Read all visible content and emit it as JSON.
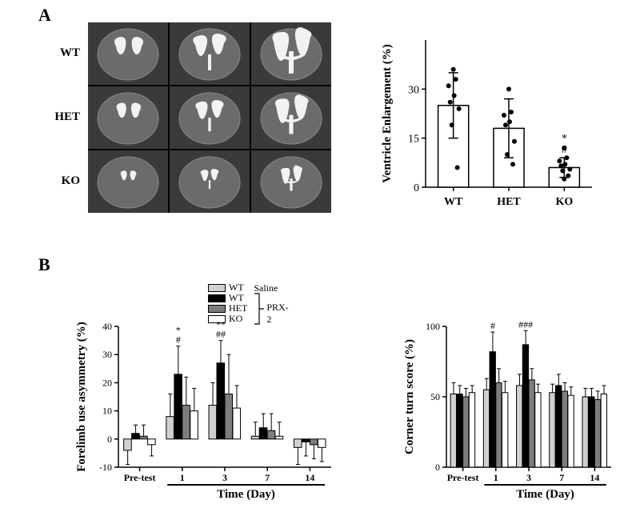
{
  "panelA": {
    "label": "A",
    "row_labels": [
      "WT",
      "HET",
      "KO"
    ],
    "mri": {
      "rows": 3,
      "cols": 3,
      "bg": "#3a3a3a",
      "brain_fill": "#6b6b6b",
      "brain_stroke": "#888",
      "ventricle_fill": "#f2f2f2"
    },
    "bar": {
      "type": "bar-scatter",
      "ylabel": "Ventricle Enlargement  (%)",
      "categories": [
        "WT",
        "HET",
        "KO"
      ],
      "ylim": [
        0,
        45
      ],
      "yticks": [
        0,
        15,
        30
      ],
      "means": [
        25,
        18,
        6
      ],
      "err": [
        10,
        9,
        3
      ],
      "scatter": [
        [
          36,
          33,
          31,
          28,
          26,
          24,
          19,
          6
        ],
        [
          30,
          23,
          22,
          20,
          19,
          14,
          10,
          7
        ],
        [
          12,
          9,
          8,
          7,
          6.5,
          5.5,
          5,
          3.5,
          2.5
        ]
      ],
      "annotations": [
        {
          "cat": "KO",
          "symbols": [
            "#",
            "*"
          ]
        }
      ],
      "bar_width": 0.55,
      "colors": {
        "bar_fill": "#ffffff",
        "stroke": "#000",
        "point": "#000"
      },
      "label_fontsize": 15,
      "tick_fontsize": 14
    }
  },
  "panelB": {
    "label": "B",
    "legend": {
      "items": [
        {
          "label": "WT",
          "fill": "#d0d0d0",
          "group": "Saline"
        },
        {
          "label": "WT",
          "fill": "#000000",
          "group": "PRX-2"
        },
        {
          "label": "HET",
          "fill": "#7d7d7d",
          "group": "PRX-2"
        },
        {
          "label": "KO",
          "fill": "#ffffff",
          "group": "PRX-2"
        }
      ],
      "group_label_saline": "Saline",
      "group_label_prx2": "PRX-2",
      "bracket_color": "#000"
    },
    "xcategories": [
      "Pre-test",
      "1",
      "3",
      "7",
      "14"
    ],
    "xlabel": "Time (Day)",
    "time_bar_from_idx": 1,
    "chart1": {
      "type": "grouped-bar",
      "ylabel": "Forelimb use asymmetry (%)",
      "ylim": [
        -10,
        40
      ],
      "yticks": [
        -10,
        0,
        10,
        20,
        30,
        40
      ],
      "series": [
        {
          "name": "WT-Saline",
          "fill": "#d0d0d0",
          "values": [
            -4,
            8,
            12,
            1,
            -3
          ],
          "err": [
            5,
            8,
            8,
            5,
            6
          ]
        },
        {
          "name": "WT",
          "fill": "#000000",
          "values": [
            2,
            23,
            27,
            4,
            -1
          ],
          "err": [
            3,
            10,
            8,
            5,
            5
          ]
        },
        {
          "name": "HET",
          "fill": "#7d7d7d",
          "values": [
            1,
            12,
            16,
            3,
            -2
          ],
          "err": [
            4,
            10,
            14,
            6,
            5
          ]
        },
        {
          "name": "KO",
          "fill": "#ffffff",
          "values": [
            -2,
            10,
            11,
            1,
            -3
          ],
          "err": [
            4,
            8,
            8,
            5,
            5
          ]
        }
      ],
      "annotations": [
        {
          "x": "1",
          "symbols": [
            "#",
            "*"
          ]
        },
        {
          "x": "3",
          "symbols": [
            "##",
            "**"
          ]
        }
      ],
      "label_fontsize": 15,
      "tick_fontsize": 12,
      "bar_gap": 0.02,
      "group_gap": 0.25
    },
    "chart2": {
      "type": "grouped-bar",
      "ylabel": "Corner turn score (%)",
      "ylim": [
        0,
        100
      ],
      "yticks": [
        0,
        50,
        100
      ],
      "series": [
        {
          "name": "WT-Saline",
          "fill": "#d0d0d0",
          "values": [
            52,
            55,
            58,
            53,
            50
          ],
          "err": [
            8,
            8,
            8,
            6,
            6
          ]
        },
        {
          "name": "WT",
          "fill": "#000000",
          "values": [
            52,
            82,
            87,
            58,
            50
          ],
          "err": [
            6,
            14,
            10,
            8,
            6
          ]
        },
        {
          "name": "HET",
          "fill": "#7d7d7d",
          "values": [
            50,
            60,
            62,
            54,
            48
          ],
          "err": [
            6,
            10,
            8,
            6,
            6
          ]
        },
        {
          "name": "KO",
          "fill": "#ffffff",
          "values": [
            53,
            53,
            53,
            51,
            52
          ],
          "err": [
            5,
            8,
            6,
            6,
            6
          ]
        }
      ],
      "annotations": [
        {
          "x": "1",
          "symbols": [
            "#"
          ]
        },
        {
          "x": "3",
          "symbols": [
            "###"
          ]
        }
      ],
      "label_fontsize": 15,
      "tick_fontsize": 12,
      "bar_gap": 0.02,
      "group_gap": 0.25
    }
  }
}
